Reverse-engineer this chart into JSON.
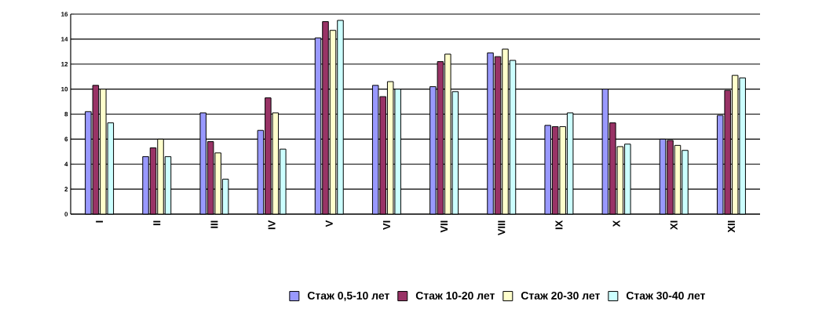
{
  "chart_data": {
    "type": "bar",
    "categories": [
      "I",
      "II",
      "III",
      "IV",
      "V",
      "VI",
      "VII",
      "VIII",
      "IX",
      "X",
      "XI",
      "XII"
    ],
    "series": [
      {
        "name": "Стаж 0,5-10 лет",
        "color": "#9999ff",
        "values": [
          8.2,
          4.6,
          8.1,
          6.7,
          14.1,
          10.3,
          10.2,
          12.9,
          7.1,
          10.0,
          6.0,
          7.9
        ]
      },
      {
        "name": "Стаж 10-20 лет",
        "color": "#993366",
        "values": [
          10.3,
          5.3,
          5.8,
          9.3,
          15.4,
          9.4,
          12.2,
          12.6,
          7.0,
          7.3,
          5.9,
          9.9
        ]
      },
      {
        "name": "Стаж 20-30 лет",
        "color": "#ffffcc",
        "values": [
          10.0,
          6.0,
          4.9,
          8.1,
          14.7,
          10.6,
          12.8,
          13.2,
          7.0,
          5.4,
          5.5,
          11.1
        ]
      },
      {
        "name": "Стаж 30-40 лет",
        "color": "#ccffff",
        "values": [
          7.3,
          4.6,
          2.8,
          5.2,
          15.5,
          10.0,
          9.8,
          12.3,
          8.1,
          5.6,
          5.1,
          10.9
        ]
      }
    ],
    "ylim": [
      0,
      16
    ],
    "yticks": [
      0,
      2,
      4,
      6,
      8,
      10,
      12,
      14,
      16
    ],
    "grid": "y",
    "legend": "bottom"
  }
}
